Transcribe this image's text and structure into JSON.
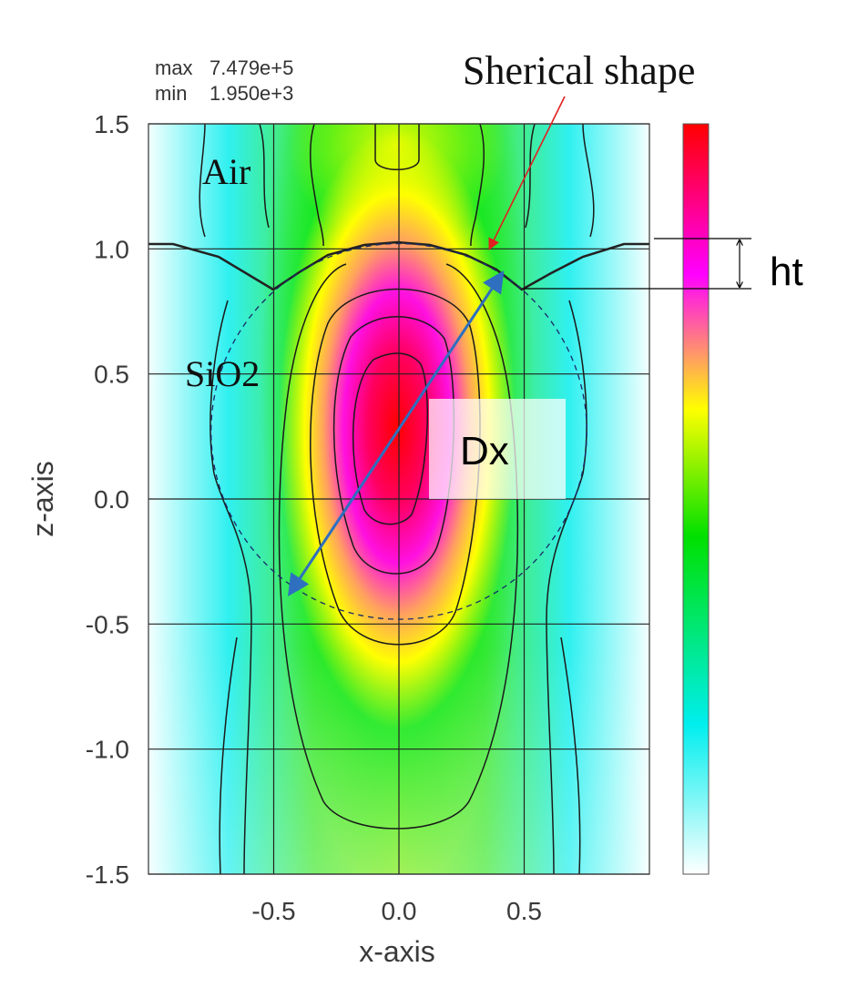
{
  "stats": {
    "max_label": "max",
    "max_value": "7.479e+5",
    "min_label": "min",
    "min_value": "1.950e+3"
  },
  "chart_data": {
    "type": "heatmap",
    "xlabel": "x-axis",
    "ylabel": "z-axis",
    "xlim": [
      -1.0,
      1.0
    ],
    "ylim": [
      -1.5,
      1.5
    ],
    "x_ticks": [
      "-0.5",
      "0.0",
      "0.5"
    ],
    "x_tick_values": [
      -0.5,
      0.0,
      0.5
    ],
    "y_ticks": [
      "1.5",
      "1.0",
      "0.5",
      "0.0",
      "-0.5",
      "-1.0",
      "-1.5"
    ],
    "y_tick_values": [
      1.5,
      1.0,
      0.5,
      0.0,
      -0.5,
      -1.0,
      -1.5
    ],
    "grid": true,
    "value_max": 747900,
    "value_min": 1950,
    "colormap": [
      "#ffffff",
      "#00eeee",
      "#00ee00",
      "#ffff00",
      "#ff00ff",
      "#ff0000"
    ],
    "surface_level_z": 1.02,
    "sphere": {
      "center_x": 0.0,
      "center_z": 0.27,
      "radius": 0.75
    }
  },
  "annotations": {
    "top_title": "Sherical shape",
    "air_label": "Air",
    "sio2_label": "SiO2",
    "dx_label": "Dx",
    "ht_label": "ht"
  },
  "colors": {
    "arrow_blue": "#2e6fbf",
    "arrow_red": "#e02020",
    "contour": "#1a1a1a"
  }
}
